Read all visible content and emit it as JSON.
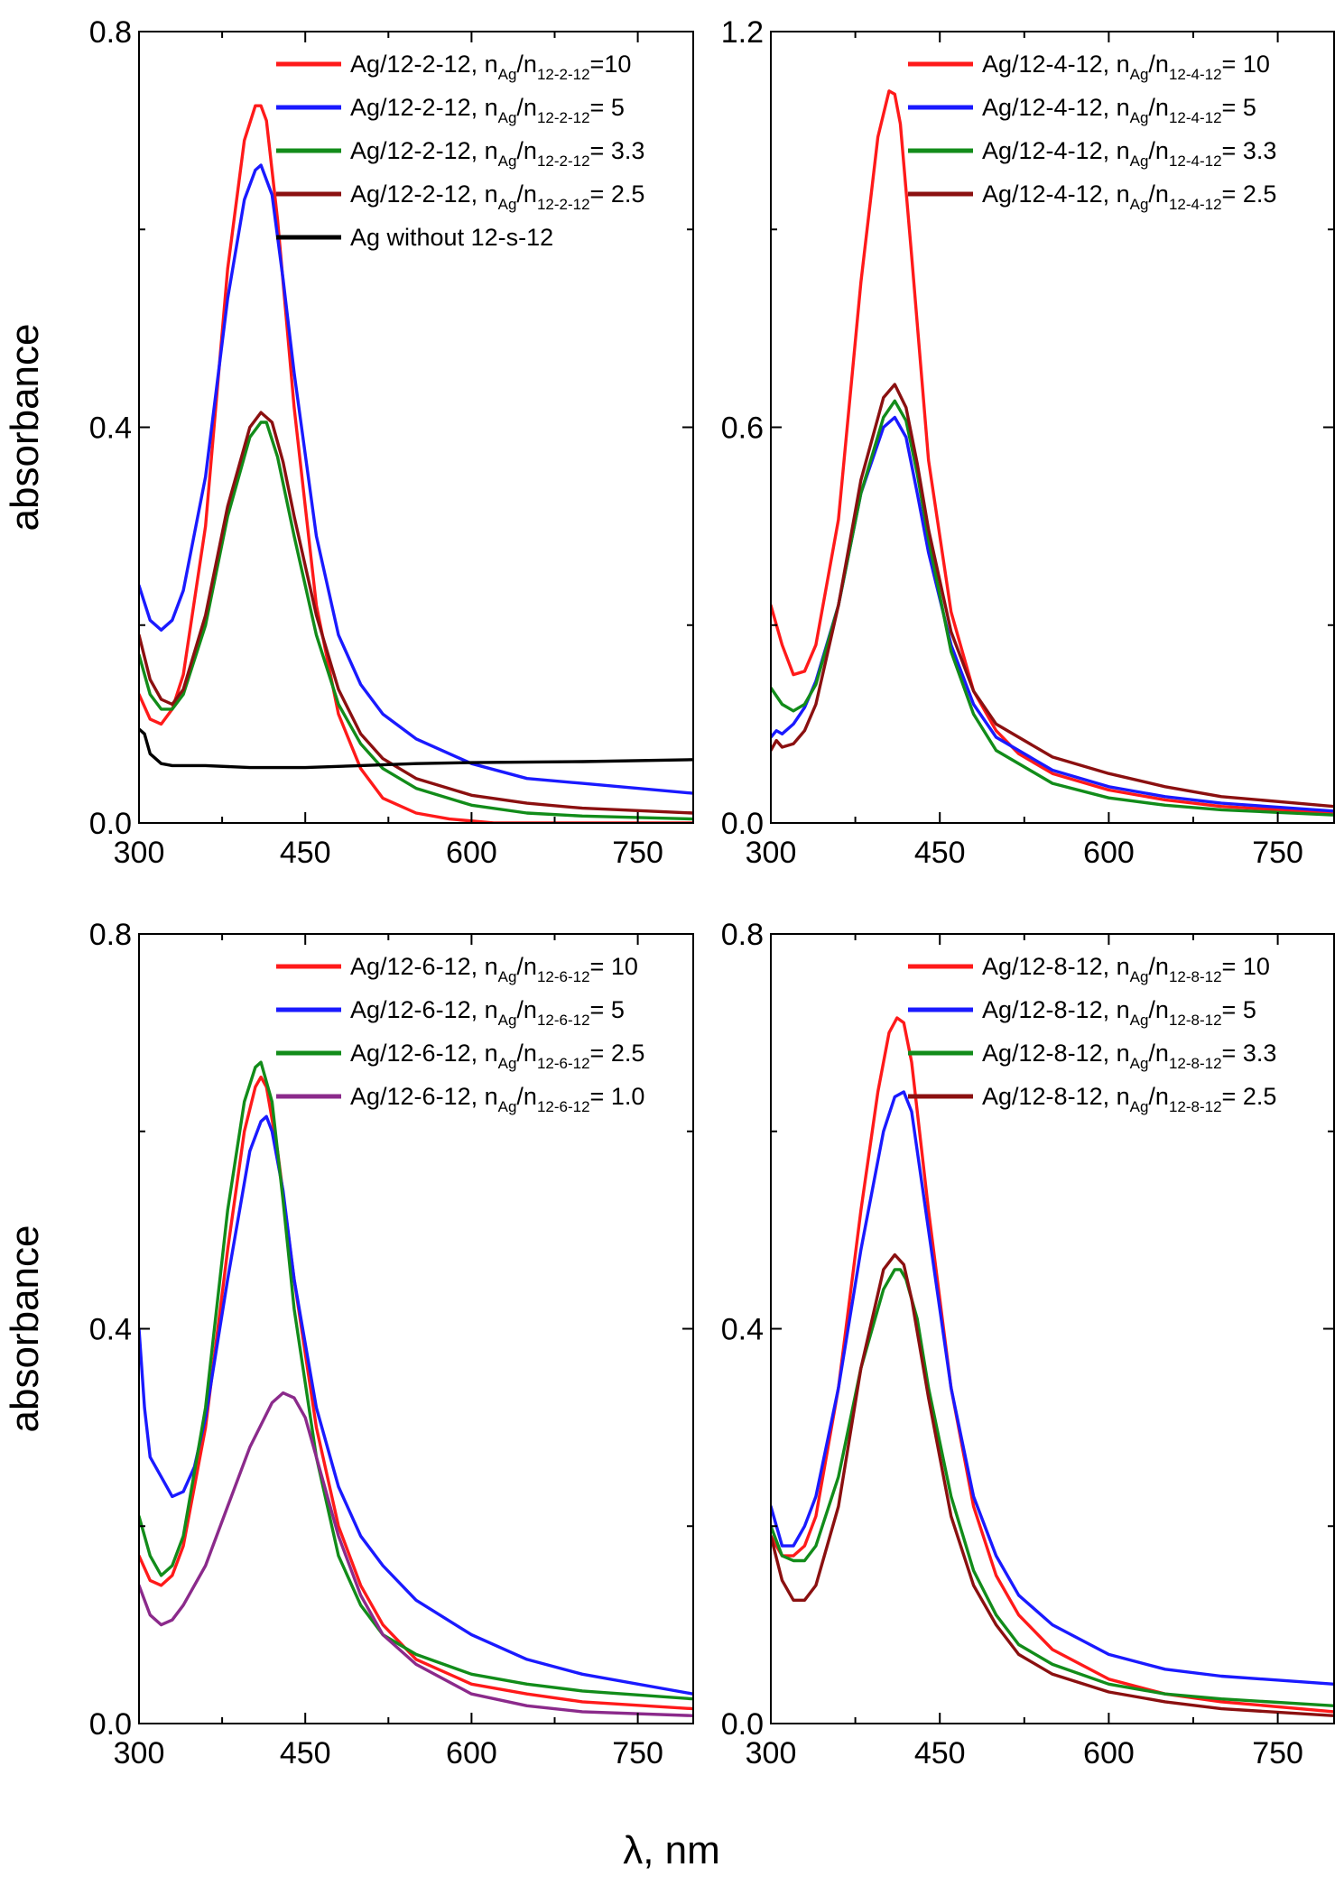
{
  "figure": {
    "shared_xlabel": "λ, nm",
    "ylabel": "absorbance"
  },
  "chart_data": [
    {
      "type": "line",
      "panel": "top-left",
      "xlabel": "λ, nm",
      "ylabel": "absorbance",
      "xlim": [
        300,
        800
      ],
      "ylim": [
        0,
        0.8
      ],
      "xticks": [
        300,
        450,
        600,
        750
      ],
      "yticks": [
        0,
        0.4,
        0.8
      ],
      "ytick_labels": [
        "0.0",
        "0.4",
        "0.8"
      ],
      "legend_position": "top-right",
      "series": [
        {
          "legend": {
            "prefix": "Ag/12-2-12, n",
            "sub1": "Ag",
            "mid": "/n",
            "sub2": "12-2-12",
            "suffix": "=10"
          },
          "color": "#ff1a1a",
          "x": [
            300,
            310,
            320,
            330,
            340,
            360,
            380,
            395,
            405,
            410,
            415,
            425,
            440,
            460,
            480,
            500,
            520,
            550,
            580,
            620,
            700,
            800
          ],
          "y": [
            0.13,
            0.105,
            0.1,
            0.115,
            0.15,
            0.3,
            0.56,
            0.69,
            0.725,
            0.725,
            0.71,
            0.61,
            0.42,
            0.22,
            0.11,
            0.055,
            0.025,
            0.01,
            0.004,
            0.0,
            0.0,
            0.0
          ]
        },
        {
          "legend": {
            "prefix": "Ag/12-2-12, n",
            "sub1": "Ag",
            "mid": "/n",
            "sub2": "12-2-12",
            "suffix": "= 5"
          },
          "color": "#1a1aff",
          "x": [
            300,
            310,
            320,
            330,
            340,
            360,
            380,
            395,
            405,
            410,
            420,
            430,
            440,
            460,
            480,
            500,
            520,
            550,
            600,
            650,
            700,
            800
          ],
          "y": [
            0.24,
            0.205,
            0.195,
            0.205,
            0.235,
            0.35,
            0.53,
            0.63,
            0.66,
            0.665,
            0.635,
            0.55,
            0.455,
            0.29,
            0.19,
            0.14,
            0.11,
            0.085,
            0.06,
            0.045,
            0.04,
            0.03
          ]
        },
        {
          "legend": {
            "prefix": "Ag/12-2-12, n",
            "sub1": "Ag",
            "mid": "/n",
            "sub2": "12-2-12",
            "suffix": "= 3.3"
          },
          "color": "#128c1a",
          "x": [
            300,
            310,
            320,
            330,
            340,
            360,
            380,
            400,
            410,
            415,
            425,
            440,
            460,
            480,
            500,
            520,
            550,
            600,
            650,
            700,
            800
          ],
          "y": [
            0.17,
            0.13,
            0.115,
            0.115,
            0.13,
            0.2,
            0.31,
            0.39,
            0.405,
            0.405,
            0.37,
            0.29,
            0.19,
            0.12,
            0.08,
            0.055,
            0.035,
            0.018,
            0.01,
            0.007,
            0.004
          ]
        },
        {
          "legend": {
            "prefix": "Ag/12-2-12, n",
            "sub1": "Ag",
            "mid": "/n",
            "sub2": "12-2-12",
            "suffix": "= 2.5"
          },
          "color": "#8b1010",
          "x": [
            300,
            310,
            320,
            330,
            340,
            360,
            380,
            400,
            410,
            420,
            430,
            440,
            460,
            480,
            500,
            520,
            550,
            600,
            650,
            700,
            800
          ],
          "y": [
            0.19,
            0.145,
            0.125,
            0.12,
            0.135,
            0.21,
            0.32,
            0.4,
            0.415,
            0.405,
            0.365,
            0.31,
            0.21,
            0.135,
            0.09,
            0.065,
            0.045,
            0.028,
            0.02,
            0.015,
            0.01
          ]
        },
        {
          "legend": {
            "prefix": "Ag without 12-s-12",
            "sub1": "",
            "mid": "",
            "sub2": "",
            "suffix": ""
          },
          "color": "#000000",
          "x": [
            300,
            305,
            310,
            320,
            330,
            360,
            400,
            450,
            500,
            550,
            600,
            700,
            800
          ],
          "y": [
            0.095,
            0.09,
            0.07,
            0.06,
            0.058,
            0.058,
            0.056,
            0.056,
            0.058,
            0.06,
            0.061,
            0.062,
            0.064
          ]
        }
      ]
    },
    {
      "type": "line",
      "panel": "top-right",
      "xlabel": "λ, nm",
      "ylabel": "",
      "xlim": [
        300,
        800
      ],
      "ylim": [
        0,
        1.2
      ],
      "xticks": [
        300,
        450,
        600,
        750
      ],
      "yticks": [
        0,
        0.6,
        1.2
      ],
      "ytick_labels": [
        "0.0",
        "0.6",
        "1.2"
      ],
      "legend_position": "top-right",
      "series": [
        {
          "legend": {
            "prefix": "Ag/12-4-12, n",
            "sub1": "Ag",
            "mid": "/n",
            "sub2": "12-4-12",
            "suffix": "= 10"
          },
          "color": "#ff1a1a",
          "x": [
            300,
            310,
            320,
            330,
            340,
            360,
            380,
            395,
            405,
            410,
            415,
            425,
            440,
            460,
            480,
            500,
            520,
            550,
            600,
            650,
            700,
            800
          ],
          "y": [
            0.33,
            0.27,
            0.225,
            0.23,
            0.27,
            0.46,
            0.82,
            1.04,
            1.11,
            1.105,
            1.06,
            0.86,
            0.55,
            0.32,
            0.2,
            0.14,
            0.105,
            0.075,
            0.05,
            0.035,
            0.025,
            0.015
          ]
        },
        {
          "legend": {
            "prefix": "Ag/12-4-12, n",
            "sub1": "Ag",
            "mid": "/n",
            "sub2": "12-4-12",
            "suffix": "= 5"
          },
          "color": "#1a1aff",
          "x": [
            300,
            305,
            310,
            320,
            330,
            340,
            360,
            380,
            400,
            410,
            420,
            430,
            440,
            460,
            480,
            500,
            550,
            600,
            650,
            700,
            800
          ],
          "y": [
            0.13,
            0.14,
            0.135,
            0.15,
            0.175,
            0.215,
            0.33,
            0.5,
            0.6,
            0.615,
            0.585,
            0.5,
            0.41,
            0.27,
            0.18,
            0.13,
            0.08,
            0.055,
            0.04,
            0.03,
            0.018
          ]
        },
        {
          "legend": {
            "prefix": "Ag/12-4-12, n",
            "sub1": "Ag",
            "mid": "/n",
            "sub2": "12-4-12",
            "suffix": "= 3.3"
          },
          "color": "#128c1a",
          "x": [
            300,
            310,
            320,
            330,
            340,
            360,
            380,
            400,
            410,
            420,
            430,
            440,
            460,
            480,
            500,
            550,
            600,
            650,
            700,
            800
          ],
          "y": [
            0.205,
            0.18,
            0.17,
            0.18,
            0.21,
            0.33,
            0.5,
            0.615,
            0.64,
            0.61,
            0.53,
            0.43,
            0.26,
            0.165,
            0.11,
            0.06,
            0.038,
            0.027,
            0.02,
            0.012
          ]
        },
        {
          "legend": {
            "prefix": "Ag/12-4-12, n",
            "sub1": "Ag",
            "mid": "/n",
            "sub2": "12-4-12",
            "suffix": "= 2.5"
          },
          "color": "#8b1010",
          "x": [
            300,
            305,
            310,
            320,
            330,
            340,
            360,
            380,
            400,
            410,
            420,
            430,
            440,
            460,
            480,
            500,
            550,
            600,
            650,
            700,
            800
          ],
          "y": [
            0.11,
            0.125,
            0.115,
            0.12,
            0.14,
            0.18,
            0.33,
            0.52,
            0.645,
            0.665,
            0.63,
            0.545,
            0.445,
            0.29,
            0.2,
            0.15,
            0.1,
            0.075,
            0.055,
            0.04,
            0.025
          ]
        }
      ]
    },
    {
      "type": "line",
      "panel": "bottom-left",
      "xlabel": "λ, nm",
      "ylabel": "absorbance",
      "xlim": [
        300,
        800
      ],
      "ylim": [
        0,
        0.8
      ],
      "xticks": [
        300,
        450,
        600,
        750
      ],
      "yticks": [
        0,
        0.4,
        0.8
      ],
      "ytick_labels": [
        "0.0",
        "0.4",
        "0.8"
      ],
      "legend_position": "top-right",
      "series": [
        {
          "legend": {
            "prefix": "Ag/12-6-12, n",
            "sub1": "Ag",
            "mid": "/n",
            "sub2": "12-6-12",
            "suffix": "= 10"
          },
          "color": "#ff1a1a",
          "x": [
            300,
            310,
            320,
            330,
            340,
            360,
            380,
            395,
            405,
            410,
            415,
            425,
            440,
            460,
            480,
            500,
            520,
            550,
            600,
            650,
            700,
            800
          ],
          "y": [
            0.17,
            0.145,
            0.14,
            0.15,
            0.18,
            0.3,
            0.48,
            0.6,
            0.645,
            0.655,
            0.645,
            0.58,
            0.45,
            0.3,
            0.2,
            0.14,
            0.1,
            0.065,
            0.04,
            0.03,
            0.022,
            0.015
          ]
        },
        {
          "legend": {
            "prefix": "Ag/12-6-12, n",
            "sub1": "Ag",
            "mid": "/n",
            "sub2": "12-6-12",
            "suffix": "= 5"
          },
          "color": "#1a1aff",
          "x": [
            300,
            305,
            310,
            320,
            330,
            340,
            350,
            360,
            380,
            400,
            410,
            415,
            420,
            430,
            440,
            460,
            480,
            500,
            520,
            550,
            600,
            650,
            700,
            800
          ],
          "y": [
            0.4,
            0.32,
            0.27,
            0.25,
            0.23,
            0.235,
            0.26,
            0.31,
            0.45,
            0.58,
            0.61,
            0.615,
            0.6,
            0.54,
            0.45,
            0.32,
            0.24,
            0.19,
            0.16,
            0.125,
            0.09,
            0.065,
            0.05,
            0.03
          ]
        },
        {
          "legend": {
            "prefix": "Ag/12-6-12, n",
            "sub1": "Ag",
            "mid": "/n",
            "sub2": "12-6-12",
            "suffix": "= 2.5"
          },
          "color": "#128c1a",
          "x": [
            300,
            310,
            320,
            330,
            340,
            360,
            380,
            395,
            405,
            410,
            420,
            430,
            440,
            460,
            480,
            500,
            520,
            550,
            600,
            650,
            700,
            800
          ],
          "y": [
            0.21,
            0.17,
            0.15,
            0.16,
            0.19,
            0.32,
            0.52,
            0.63,
            0.665,
            0.67,
            0.63,
            0.53,
            0.42,
            0.27,
            0.17,
            0.12,
            0.09,
            0.07,
            0.05,
            0.04,
            0.033,
            0.025
          ]
        },
        {
          "legend": {
            "prefix": "Ag/12-6-12, n",
            "sub1": "Ag",
            "mid": "/n",
            "sub2": "12-6-12",
            "suffix": "= 1.0"
          },
          "color": "#8b2a8b",
          "x": [
            300,
            310,
            320,
            330,
            340,
            360,
            380,
            400,
            420,
            430,
            440,
            450,
            460,
            480,
            500,
            520,
            550,
            600,
            650,
            700,
            800
          ],
          "y": [
            0.14,
            0.11,
            0.1,
            0.105,
            0.12,
            0.16,
            0.22,
            0.28,
            0.325,
            0.335,
            0.33,
            0.31,
            0.27,
            0.19,
            0.13,
            0.09,
            0.06,
            0.03,
            0.018,
            0.012,
            0.008
          ]
        }
      ]
    },
    {
      "type": "line",
      "panel": "bottom-right",
      "xlabel": "λ, nm",
      "ylabel": "",
      "xlim": [
        300,
        800
      ],
      "ylim": [
        0,
        0.8
      ],
      "xticks": [
        300,
        450,
        600,
        750
      ],
      "yticks": [
        0,
        0.4,
        0.8
      ],
      "ytick_labels": [
        "0.0",
        "0.4",
        "0.8"
      ],
      "legend_position": "top-right",
      "series": [
        {
          "legend": {
            "prefix": "Ag/12-8-12, n",
            "sub1": "Ag",
            "mid": "/n",
            "sub2": "12-8-12",
            "suffix": "= 10"
          },
          "color": "#ff1a1a",
          "x": [
            300,
            310,
            320,
            330,
            340,
            360,
            380,
            395,
            405,
            412,
            418,
            425,
            440,
            460,
            480,
            500,
            520,
            550,
            600,
            650,
            700,
            800
          ],
          "y": [
            0.19,
            0.17,
            0.17,
            0.18,
            0.21,
            0.34,
            0.52,
            0.64,
            0.7,
            0.715,
            0.71,
            0.67,
            0.52,
            0.34,
            0.22,
            0.15,
            0.11,
            0.075,
            0.045,
            0.03,
            0.022,
            0.012
          ]
        },
        {
          "legend": {
            "prefix": "Ag/12-8-12, n",
            "sub1": "Ag",
            "mid": "/n",
            "sub2": "12-8-12",
            "suffix": "= 5"
          },
          "color": "#1a1aff",
          "x": [
            300,
            310,
            320,
            330,
            340,
            360,
            380,
            400,
            410,
            418,
            425,
            440,
            460,
            480,
            500,
            520,
            550,
            600,
            650,
            700,
            800
          ],
          "y": [
            0.22,
            0.18,
            0.18,
            0.2,
            0.23,
            0.34,
            0.48,
            0.6,
            0.635,
            0.64,
            0.62,
            0.5,
            0.34,
            0.23,
            0.17,
            0.13,
            0.1,
            0.07,
            0.055,
            0.048,
            0.04
          ]
        },
        {
          "legend": {
            "prefix": "Ag/12-8-12, n",
            "sub1": "Ag",
            "mid": "/n",
            "sub2": "12-8-12",
            "suffix": "= 3.3"
          },
          "color": "#128c1a",
          "x": [
            300,
            310,
            320,
            330,
            340,
            360,
            380,
            400,
            410,
            415,
            420,
            430,
            440,
            460,
            480,
            500,
            520,
            550,
            600,
            650,
            700,
            800
          ],
          "y": [
            0.2,
            0.17,
            0.165,
            0.165,
            0.18,
            0.25,
            0.36,
            0.44,
            0.46,
            0.46,
            0.45,
            0.41,
            0.34,
            0.23,
            0.155,
            0.11,
            0.08,
            0.06,
            0.04,
            0.03,
            0.025,
            0.018
          ]
        },
        {
          "legend": {
            "prefix": "Ag/12-8-12, n",
            "sub1": "Ag",
            "mid": "/n",
            "sub2": "12-8-12",
            "suffix": "= 2.5"
          },
          "color": "#8b1010",
          "x": [
            300,
            310,
            320,
            330,
            340,
            360,
            380,
            400,
            410,
            418,
            425,
            440,
            460,
            480,
            500,
            520,
            550,
            600,
            650,
            700,
            800
          ],
          "y": [
            0.19,
            0.145,
            0.125,
            0.125,
            0.14,
            0.22,
            0.36,
            0.46,
            0.475,
            0.465,
            0.43,
            0.33,
            0.21,
            0.14,
            0.1,
            0.07,
            0.05,
            0.032,
            0.022,
            0.015,
            0.008
          ]
        }
      ]
    }
  ]
}
